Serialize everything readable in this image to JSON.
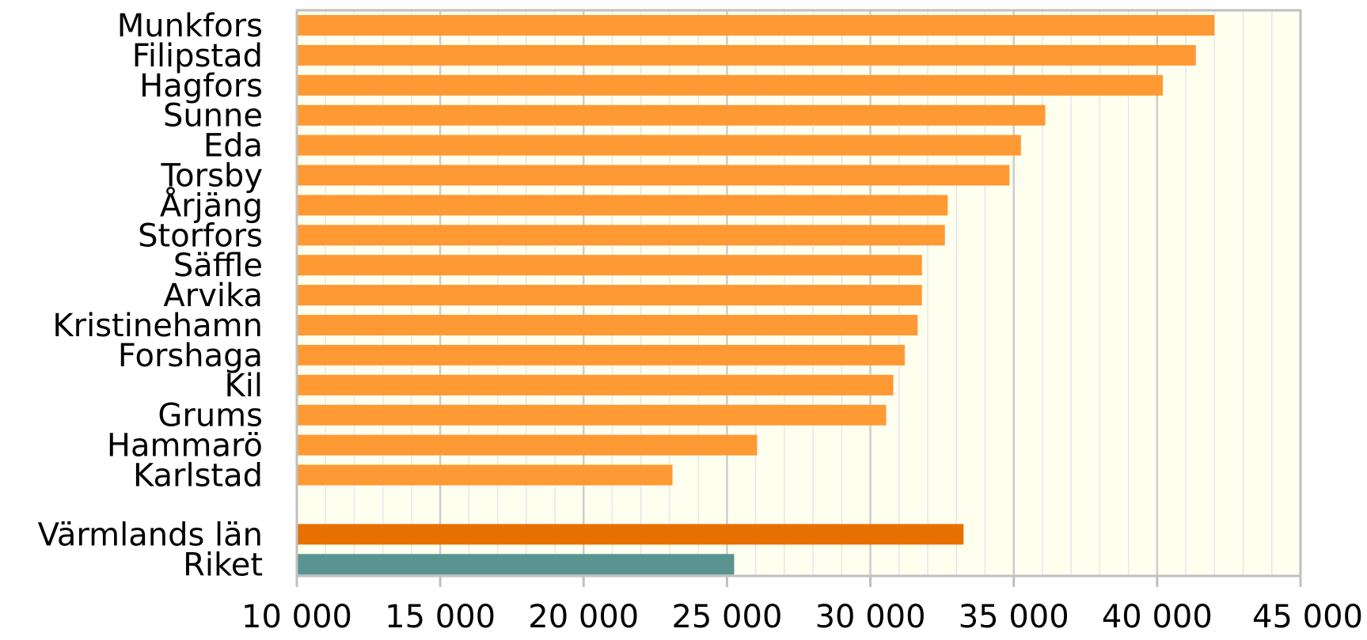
{
  "chart_data": {
    "type": "bar",
    "orientation": "horizontal",
    "title": "",
    "xlabel": "",
    "ylabel": "",
    "xlim": [
      10000,
      45000
    ],
    "x_ticks": [
      {
        "value": 10000,
        "label": "10 000"
      },
      {
        "value": 15000,
        "label": "15 000"
      },
      {
        "value": 20000,
        "label": "20 000"
      },
      {
        "value": 25000,
        "label": "25 000"
      },
      {
        "value": 30000,
        "label": "30 000"
      },
      {
        "value": 35000,
        "label": "35 000"
      },
      {
        "value": 40000,
        "label": "40 000"
      },
      {
        "value": 45000,
        "label": "45 000"
      }
    ],
    "grid": "vertical major and minor gridlines",
    "legend": "none",
    "colors": {
      "municipality": "#FF9933",
      "county": "#E87000",
      "nation": "#5A9490",
      "plot_background": "#FFFFF0",
      "major_grid": "#CCCCCC",
      "minor_grid": "#E6E6E6",
      "frame": "#C0C0C0"
    },
    "bars": [
      {
        "category": "Munkfors",
        "value": 42000,
        "group": "municipality"
      },
      {
        "category": "Filipstad",
        "value": 41350,
        "group": "municipality"
      },
      {
        "category": "Hagfors",
        "value": 40200,
        "group": "municipality"
      },
      {
        "category": "Sunne",
        "value": 36100,
        "group": "municipality"
      },
      {
        "category": "Eda",
        "value": 35250,
        "group": "municipality"
      },
      {
        "category": "Torsby",
        "value": 34850,
        "group": "municipality"
      },
      {
        "category": "Årjäng",
        "value": 32700,
        "group": "municipality"
      },
      {
        "category": "Storfors",
        "value": 32600,
        "group": "municipality"
      },
      {
        "category": "Säffle",
        "value": 31800,
        "group": "municipality"
      },
      {
        "category": "Arvika",
        "value": 31800,
        "group": "municipality"
      },
      {
        "category": "Kristinehamn",
        "value": 31650,
        "group": "municipality"
      },
      {
        "category": "Forshaga",
        "value": 31200,
        "group": "municipality"
      },
      {
        "category": "Kil",
        "value": 30800,
        "group": "municipality"
      },
      {
        "category": "Grums",
        "value": 30550,
        "group": "municipality"
      },
      {
        "category": "Hammarö",
        "value": 26050,
        "group": "municipality"
      },
      {
        "category": "Karlstad",
        "value": 23100,
        "group": "municipality"
      },
      {
        "category": "Värmlands län",
        "value": 33250,
        "group": "county"
      },
      {
        "category": "Riket",
        "value": 25250,
        "group": "nation"
      }
    ]
  }
}
